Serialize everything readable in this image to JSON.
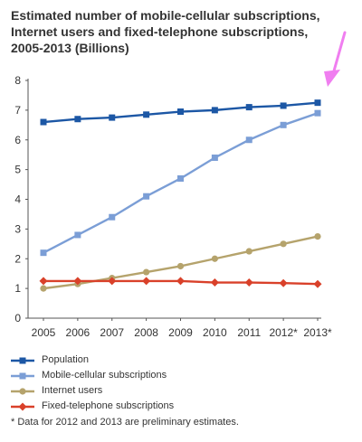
{
  "title_lines": [
    "Estimated number of mobile-cellular subscriptions,",
    "Internet users and fixed-telephone subscriptions,",
    "2005-2013 (Billions)"
  ],
  "footnote": "* Data for 2012 and 2013 are preliminary estimates.",
  "colors": {
    "population": "#1c57a5",
    "mobile": "#7b9ed6",
    "internet": "#b5a36c",
    "fixed": "#d9412a",
    "annotation_arrow": "#f07ef0",
    "axis": "#555555"
  },
  "chart_data": {
    "type": "line",
    "title": "Estimated number of mobile-cellular subscriptions, Internet users and fixed-telephone subscriptions, 2005-2013 (Billions)",
    "categories": [
      "2005",
      "2006",
      "2007",
      "2008",
      "2009",
      "2010",
      "2011",
      "2012*",
      "2013*"
    ],
    "ylim": [
      0,
      8
    ],
    "yticks": [
      "0",
      "1",
      "2",
      "3",
      "4",
      "5",
      "6",
      "7",
      "8"
    ],
    "grid": false,
    "legend_placement": "bottom",
    "series": [
      {
        "name": "Population",
        "color": "#1c57a5",
        "marker": "square",
        "values": [
          6.6,
          6.7,
          6.75,
          6.85,
          6.95,
          7.0,
          7.1,
          7.15,
          7.25
        ]
      },
      {
        "name": "Mobile-cellular subscriptions",
        "color": "#7b9ed6",
        "marker": "square",
        "values": [
          2.2,
          2.8,
          3.4,
          4.1,
          4.7,
          5.4,
          6.0,
          6.5,
          6.9
        ]
      },
      {
        "name": "Internet users",
        "color": "#b5a36c",
        "marker": "circle",
        "values": [
          1.0,
          1.15,
          1.35,
          1.55,
          1.75,
          2.0,
          2.25,
          2.5,
          2.75
        ]
      },
      {
        "name": "Fixed-telephone subscriptions",
        "color": "#d9412a",
        "marker": "diamond",
        "values": [
          1.25,
          1.25,
          1.25,
          1.25,
          1.25,
          1.2,
          1.2,
          1.18,
          1.15
        ]
      }
    ]
  }
}
